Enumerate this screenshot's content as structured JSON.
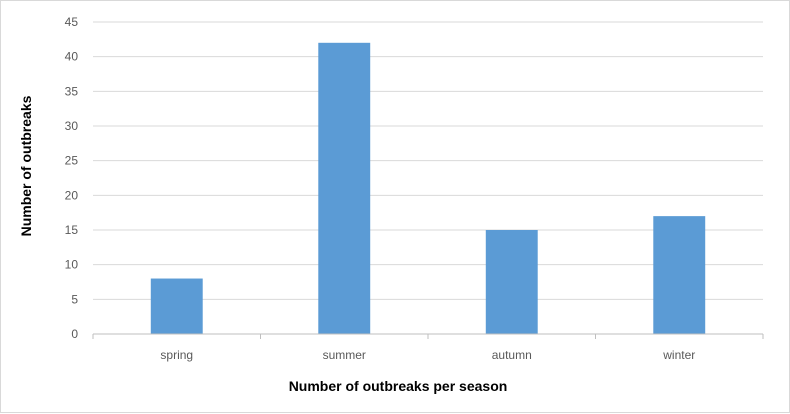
{
  "chart_data": {
    "type": "bar",
    "title": "",
    "categories": [
      "spring",
      "summer",
      "autumn",
      "winter"
    ],
    "series": [
      {
        "values": [
          8,
          42,
          15,
          17
        ]
      }
    ],
    "xlabel": "Number of outbreaks per season",
    "ylabel": "Number of outbreaks",
    "ylim": [
      0,
      45
    ],
    "yticks": [
      0,
      5,
      10,
      15,
      20,
      25,
      30,
      35,
      40,
      45
    ],
    "grid": true,
    "legend": "none",
    "colors": {
      "bar": "#5b9bd5",
      "grid": "#d9d9d9",
      "axis": "#bfbfbf",
      "tick_text": "#595959"
    }
  }
}
